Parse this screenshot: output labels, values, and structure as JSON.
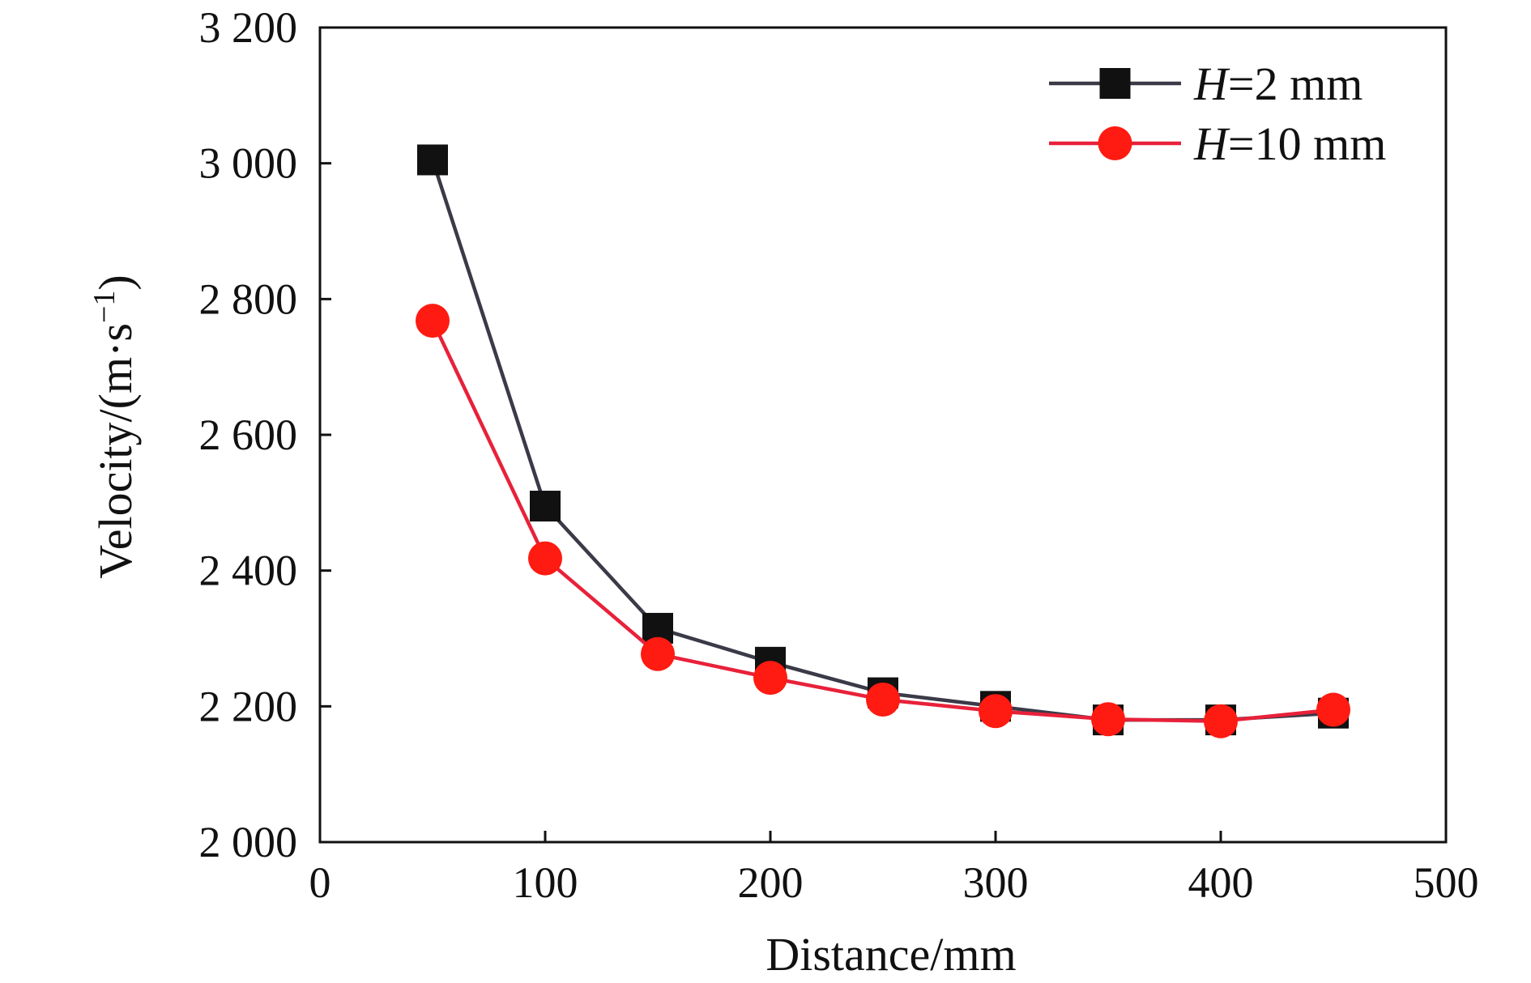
{
  "chart_data": {
    "type": "line",
    "title": "",
    "xlabel": "Distance/mm",
    "ylabel": "Velocity/(m·s",
    "ylabel_superscript": "−1",
    "ylabel_close": ")",
    "xlim": [
      0,
      500
    ],
    "ylim": [
      2000,
      3200
    ],
    "x_ticks": [
      0,
      100,
      200,
      300,
      400,
      500
    ],
    "x_tick_labels": [
      "0",
      "100",
      "200",
      "300",
      "400",
      "500"
    ],
    "y_ticks": [
      2000,
      2200,
      2400,
      2600,
      2800,
      3000,
      3200
    ],
    "y_tick_labels": [
      "2 000",
      "2 200",
      "2 400",
      "2 600",
      "2 800",
      "3 000",
      "3 200"
    ],
    "grid": false,
    "legend_position": "top-right",
    "series": [
      {
        "name": "H=2 mm",
        "name_italic": "H",
        "name_rest": "=2 mm",
        "marker": "square",
        "line_color": "#3a3a48",
        "marker_color": "#111111",
        "x": [
          50,
          100,
          150,
          200,
          250,
          300,
          350,
          400,
          450
        ],
        "y": [
          3005,
          2495,
          2315,
          2265,
          2220,
          2200,
          2180,
          2180,
          2190
        ]
      },
      {
        "name": "H=10 mm",
        "name_italic": "H",
        "name_rest": "=10 mm",
        "marker": "circle",
        "line_color": "#e8213a",
        "marker_color": "#ff1a12",
        "x": [
          50,
          100,
          150,
          200,
          250,
          300,
          350,
          400,
          450
        ],
        "y": [
          2768,
          2418,
          2277,
          2242,
          2210,
          2193,
          2181,
          2178,
          2195
        ]
      }
    ]
  }
}
